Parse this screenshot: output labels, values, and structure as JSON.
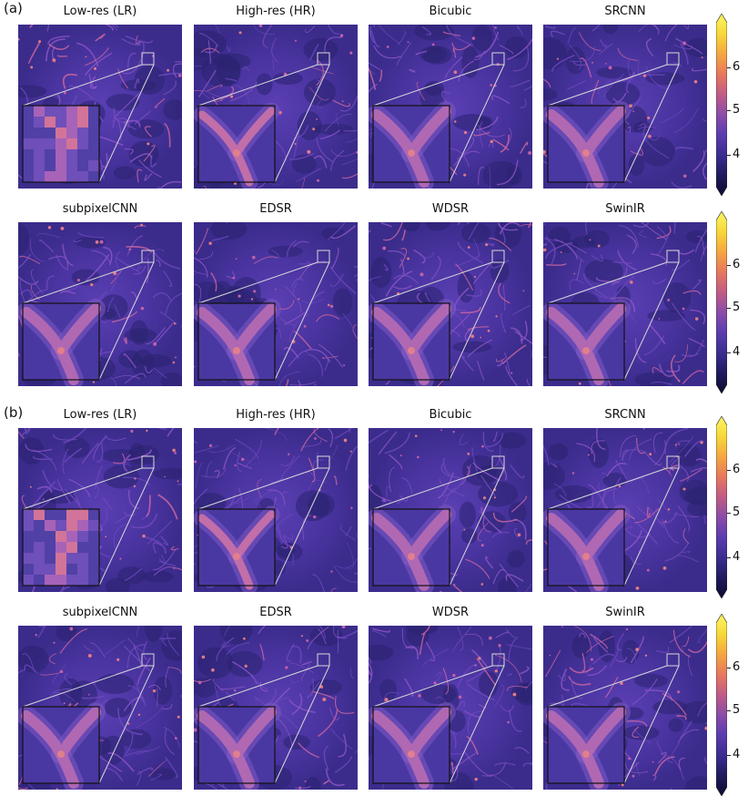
{
  "figure": {
    "colormap": [
      "#0d0a2e",
      "#1f1b5e",
      "#3a2d8f",
      "#5b3cb0",
      "#8a4ca8",
      "#c05c86",
      "#e7785e",
      "#f5a641",
      "#f7d83a",
      "#fbf665"
    ],
    "panels": [
      {
        "label": "(a)",
        "rows": [
          [
            "Low-res (LR)",
            "High-res (HR)",
            "Bicubic",
            "SRCNN"
          ],
          [
            "subpixelCNN",
            "EDSR",
            "WDSR",
            "SwinIR"
          ]
        ]
      },
      {
        "label": "(b)",
        "rows": [
          [
            "Low-res (LR)",
            "High-res (HR)",
            "Bicubic",
            "SRCNN"
          ],
          [
            "subpixelCNN",
            "EDSR",
            "WDSR",
            "SwinIR"
          ]
        ]
      }
    ],
    "colorbar_ticks": [
      "6",
      "5",
      "4"
    ]
  }
}
